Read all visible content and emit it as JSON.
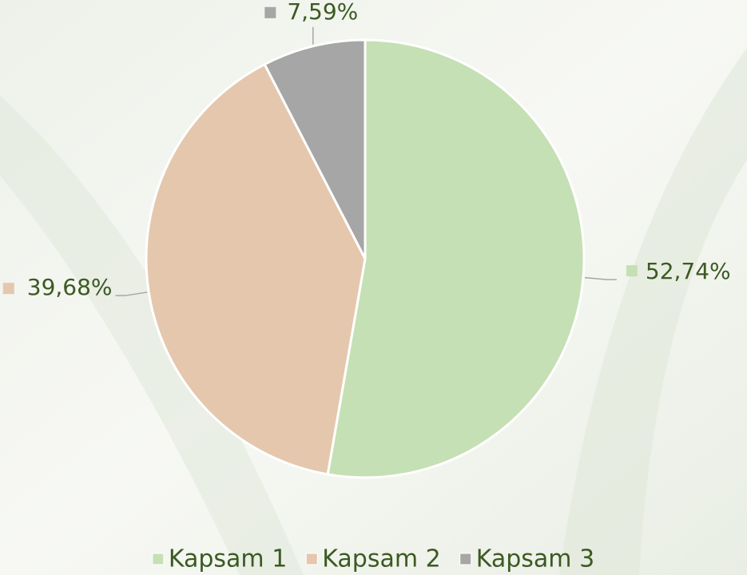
{
  "chart_data": {
    "type": "pie",
    "categories": [
      "Kapsam 1",
      "Kapsam 2",
      "Kapsam 3"
    ],
    "values": [
      52.74,
      39.68,
      7.59
    ],
    "value_labels": [
      "52,74%",
      "39,68%",
      "7,59%"
    ],
    "colors": [
      "#c5e0b4",
      "#e4c7ad",
      "#a6a6a6"
    ],
    "legend": "bottom"
  }
}
